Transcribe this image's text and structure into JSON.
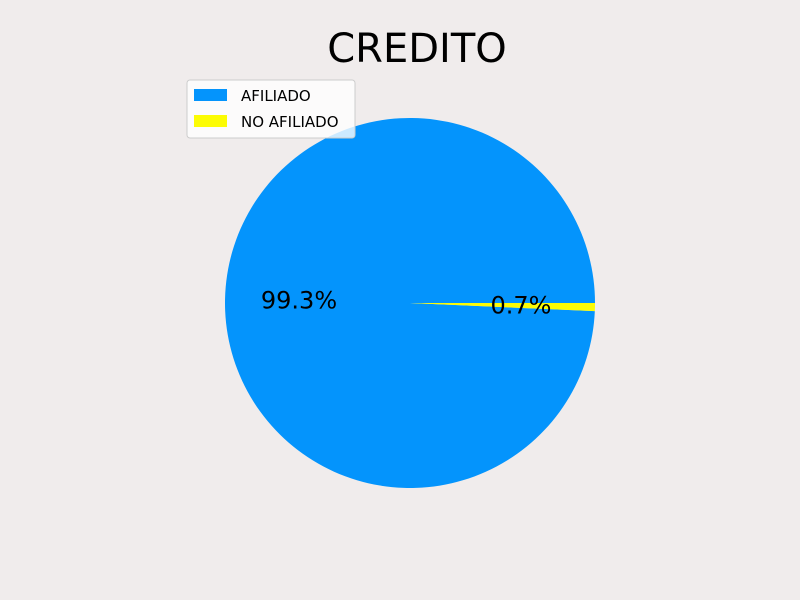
{
  "chart_data": {
    "type": "pie",
    "title": "CREDITO",
    "categories": [
      "AFILIADO",
      "NO AFILIADO"
    ],
    "values": [
      99.3,
      0.7
    ],
    "labels": [
      "99.3%",
      "0.7%"
    ],
    "colors": [
      "#0494fc",
      "#fcfc04"
    ],
    "legend_position": "top-left"
  },
  "colors": {
    "background": "#f0ecec"
  }
}
